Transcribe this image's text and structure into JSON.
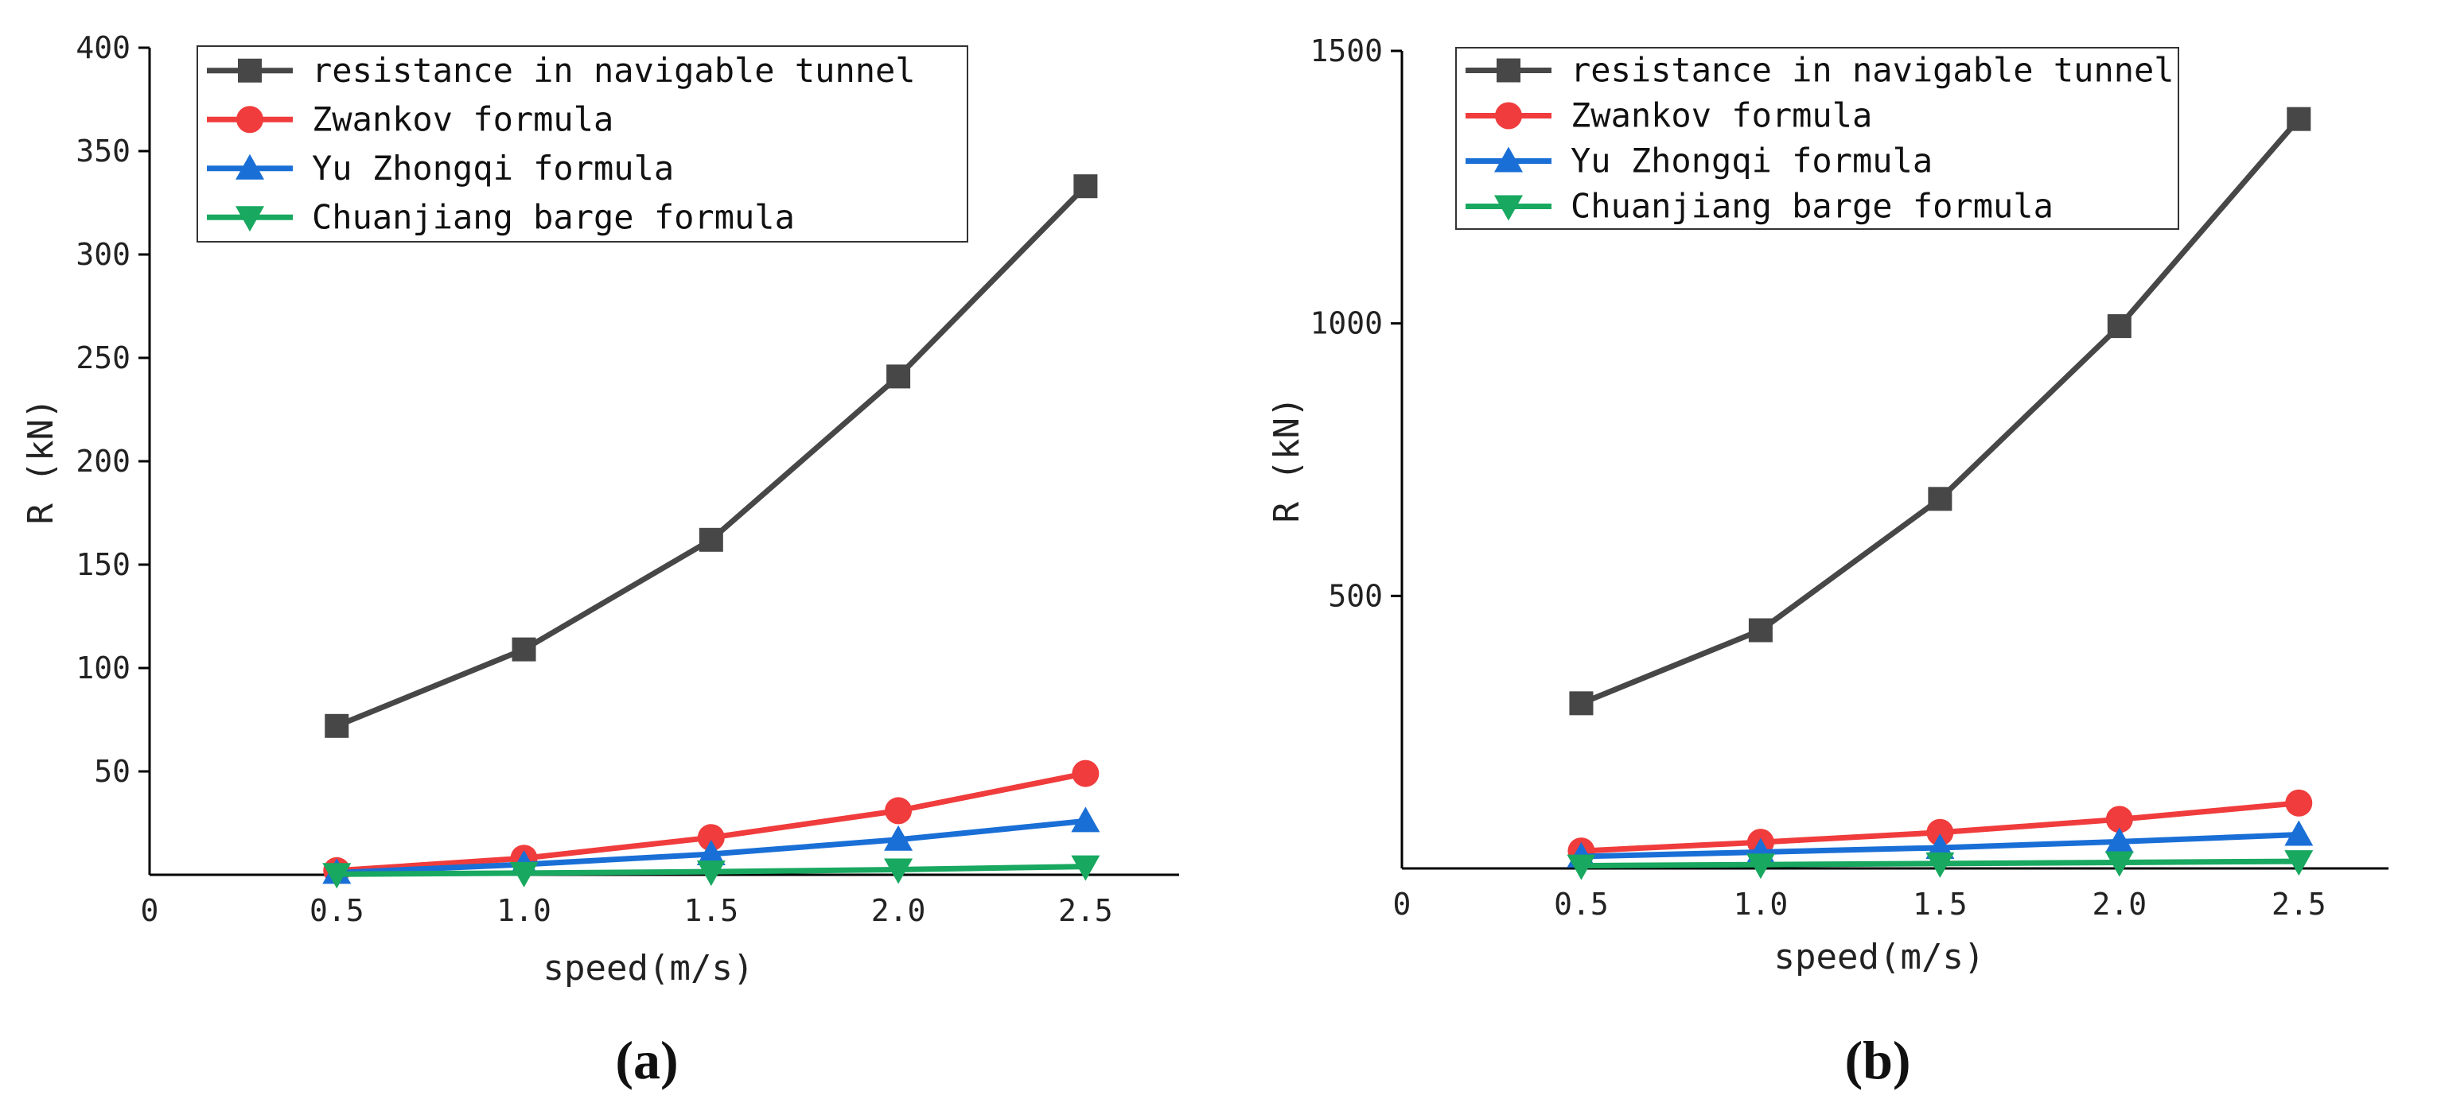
{
  "chart_data": [
    {
      "type": "line",
      "panel_label": "(a)",
      "xlabel": "speed(m/s)",
      "ylabel": "R (kN)",
      "x": [
        0.5,
        1.0,
        1.5,
        2.0,
        2.5
      ],
      "xlim": [
        0,
        2.75
      ],
      "ylim": [
        0,
        400
      ],
      "x_ticks": [
        "0",
        "0.5",
        "1.0",
        "1.5",
        "2.0",
        "2.5"
      ],
      "x_tick_values": [
        0,
        0.5,
        1.0,
        1.5,
        2.0,
        2.5
      ],
      "y_ticks": [
        "50",
        "100",
        "150",
        "200",
        "250",
        "300",
        "350",
        "400"
      ],
      "y_tick_values": [
        50,
        100,
        150,
        200,
        250,
        300,
        350,
        400
      ],
      "legend_position": "top-left",
      "series": [
        {
          "name": "resistance in navigable tunnel",
          "marker": "square",
          "color": "#474747",
          "values": [
            72,
            109,
            162,
            241,
            333
          ]
        },
        {
          "name": "Zwankov formula",
          "marker": "circle",
          "color": "#f03c3c",
          "values": [
            2,
            8,
            18,
            31,
            49
          ]
        },
        {
          "name": "Yu Zhongqi formula",
          "marker": "triangle-up",
          "color": "#1a6fd6",
          "values": [
            1,
            5,
            10,
            17,
            26
          ]
        },
        {
          "name": "Chuanjiang barge formula",
          "marker": "triangle-down",
          "color": "#18a860",
          "values": [
            0.3,
            0.8,
            1.5,
            2.5,
            4
          ]
        }
      ]
    },
    {
      "type": "line",
      "panel_label": "(b)",
      "xlabel": "speed(m/s)",
      "ylabel": "R (kN)",
      "x": [
        0.5,
        1.0,
        1.5,
        2.0,
        2.5
      ],
      "xlim": [
        0,
        2.75
      ],
      "ylim": [
        0,
        1500
      ],
      "x_ticks": [
        "0",
        "0.5",
        "1.0",
        "1.5",
        "2.0",
        "2.5"
      ],
      "x_tick_values": [
        0,
        0.5,
        1.0,
        1.5,
        2.0,
        2.5
      ],
      "y_ticks": [
        "500",
        "1000",
        "1500"
      ],
      "y_tick_values": [
        500,
        1000,
        1500
      ],
      "legend_position": "top-left",
      "series": [
        {
          "name": "resistance in navigable tunnel",
          "marker": "square",
          "color": "#474747",
          "values": [
            303,
            437,
            678,
            995,
            1375
          ]
        },
        {
          "name": "Zwankov formula",
          "marker": "circle",
          "color": "#f03c3c",
          "values": [
            32,
            48,
            66,
            90,
            120
          ]
        },
        {
          "name": "Yu Zhongqi formula",
          "marker": "triangle-up",
          "color": "#1a6fd6",
          "values": [
            22,
            30,
            38,
            49,
            62
          ]
        },
        {
          "name": "Chuanjiang barge formula",
          "marker": "triangle-down",
          "color": "#18a860",
          "values": [
            5,
            7,
            9,
            11,
            13
          ]
        }
      ]
    }
  ]
}
